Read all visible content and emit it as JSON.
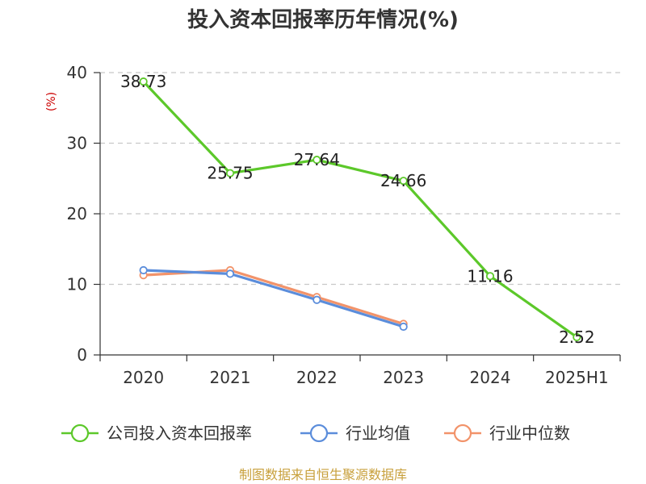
{
  "chart_data": {
    "type": "line",
    "title": "投入资本回报率历年情况(%)",
    "ylabel": "(%)",
    "xlabel": "",
    "categories": [
      "2020",
      "2021",
      "2022",
      "2023",
      "2024",
      "2025H1"
    ],
    "ylim": [
      0,
      40
    ],
    "yticks": [
      0,
      10,
      20,
      30,
      40
    ],
    "grid": true,
    "legend_position": "bottom",
    "series": [
      {
        "name": "公司投入资本回报率",
        "color": "#5cc82a",
        "values": [
          38.73,
          25.75,
          27.64,
          24.66,
          11.16,
          2.52
        ],
        "labels": [
          "38.73",
          "25.75",
          "27.64",
          "24.66",
          "11.16",
          "2.52"
        ]
      },
      {
        "name": "行业均值",
        "color": "#5b8ddb",
        "values": [
          12.0,
          11.5,
          7.8,
          4.0,
          null,
          null
        ]
      },
      {
        "name": "行业中位数",
        "color": "#f2936a",
        "values": [
          11.3,
          12.0,
          8.2,
          4.4,
          null,
          null
        ]
      }
    ],
    "source": "制图数据来自恒生聚源数据库"
  }
}
